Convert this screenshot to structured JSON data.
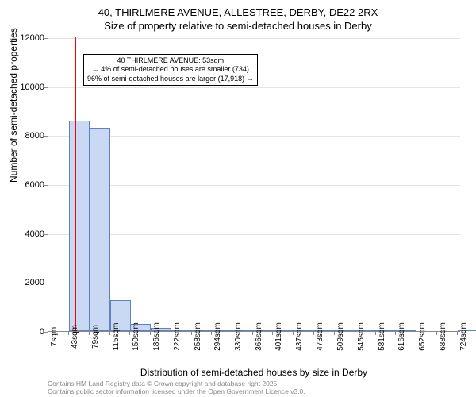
{
  "title_line1": "40, THIRLMERE AVENUE, ALLESTREE, DERBY, DE22 2RX",
  "title_line2": "Size of property relative to semi-detached houses in Derby",
  "ylabel": "Number of semi-detached properties",
  "xlabel": "Distribution of semi-detached houses by size in Derby",
  "chart": {
    "type": "bar",
    "background_color": "#ffffff",
    "grid_color": "#e5e5e5",
    "bar_fill": "#c9d9f3",
    "bar_border": "#6080bf",
    "highlight_color": "#ff0000",
    "ylim": [
      0,
      12000
    ],
    "yticks": [
      0,
      2000,
      4000,
      6000,
      8000,
      10000,
      12000
    ],
    "xticks": [
      "7sqm",
      "43sqm",
      "79sqm",
      "115sqm",
      "150sqm",
      "186sqm",
      "222sqm",
      "258sqm",
      "294sqm",
      "330sqm",
      "366sqm",
      "401sqm",
      "437sqm",
      "473sqm",
      "509sqm",
      "545sqm",
      "581sqm",
      "616sqm",
      "652sqm",
      "688sqm",
      "724sqm"
    ],
    "xmin": 7,
    "xmax": 730,
    "values": [
      {
        "x": 43,
        "y": 8600
      },
      {
        "x": 79,
        "y": 8300
      },
      {
        "x": 115,
        "y": 1250
      },
      {
        "x": 150,
        "y": 280
      },
      {
        "x": 186,
        "y": 120
      },
      {
        "x": 222,
        "y": 60
      },
      {
        "x": 258,
        "y": 40
      },
      {
        "x": 294,
        "y": 50
      },
      {
        "x": 330,
        "y": 20
      },
      {
        "x": 366,
        "y": 15
      },
      {
        "x": 401,
        "y": 10
      },
      {
        "x": 437,
        "y": 10
      },
      {
        "x": 473,
        "y": 10
      },
      {
        "x": 509,
        "y": 5
      },
      {
        "x": 545,
        "y": 5
      },
      {
        "x": 581,
        "y": 5
      },
      {
        "x": 616,
        "y": 5
      },
      {
        "x": 652,
        "y": 0
      },
      {
        "x": 688,
        "y": 0
      },
      {
        "x": 724,
        "y": 5
      }
    ],
    "bar_width_sqm": 36,
    "highlight_x": 53
  },
  "annotation": {
    "line1": "40 THIRLMERE AVENUE: 53sqm",
    "line2": "← 4% of semi-detached houses are smaller (734)",
    "line3": "96% of semi-detached houses are larger (17,918) →"
  },
  "footer": {
    "line1": "Contains HM Land Registry data © Crown copyright and database right 2025.",
    "line2": "Contains public sector information licensed under the Open Government Licence v3.0."
  }
}
